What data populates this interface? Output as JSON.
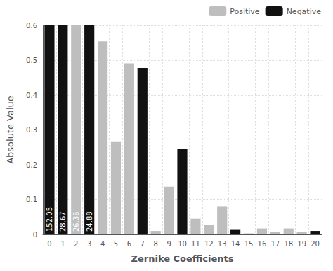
{
  "chart_data": {
    "type": "bar",
    "categories": [
      0,
      1,
      2,
      3,
      4,
      5,
      6,
      7,
      8,
      9,
      10,
      11,
      12,
      13,
      14,
      15,
      16,
      17,
      18,
      19,
      20
    ],
    "series": [
      {
        "name": "Positive",
        "color": "#bebebe",
        "values": [
          null,
          null,
          0.6,
          null,
          0.555,
          0.265,
          0.49,
          null,
          0.01,
          0.138,
          null,
          0.045,
          0.027,
          0.08,
          null,
          0.003,
          0.017,
          0.007,
          0.017,
          0.007,
          null
        ]
      },
      {
        "name": "Negative",
        "color": "#111111",
        "values": [
          0.6,
          0.6,
          null,
          0.6,
          null,
          null,
          null,
          0.478,
          null,
          null,
          0.245,
          null,
          null,
          null,
          0.013,
          null,
          null,
          null,
          null,
          null,
          0.01
        ]
      }
    ],
    "annotations": [
      {
        "category": 0,
        "text": "152.05"
      },
      {
        "category": 1,
        "text": "28.67"
      },
      {
        "category": 2,
        "text": "26.36"
      },
      {
        "category": 3,
        "text": "24.88"
      }
    ],
    "xlabel": "Zernike Coefficients",
    "ylabel": "Absolute Value",
    "ylim": [
      0,
      0.6
    ],
    "yticks": [
      0,
      0.1,
      0.2,
      0.3,
      0.4,
      0.5,
      0.6
    ],
    "grid": true,
    "legend": "upper right"
  }
}
